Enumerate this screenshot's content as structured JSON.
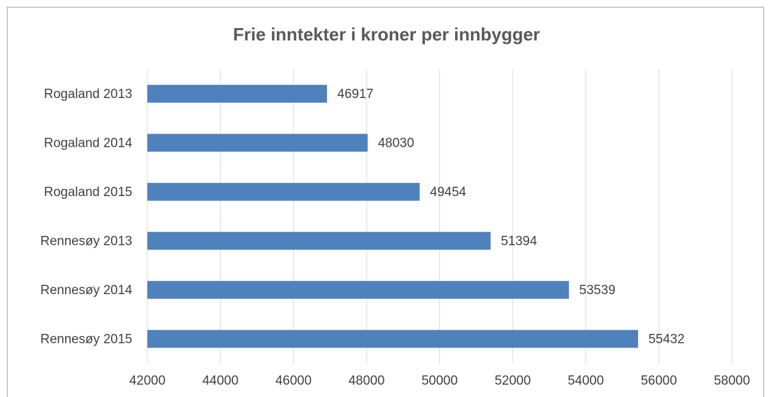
{
  "chart_data": {
    "type": "bar",
    "orientation": "horizontal",
    "title": "Frie inntekter i kroner per innbygger",
    "categories": [
      "Rogaland 2013",
      "Rogaland 2014",
      "Rogaland 2015",
      "Rennesøy 2013",
      "Rennesøy 2014",
      "Rennesøy 2015"
    ],
    "values": [
      46917,
      48030,
      49454,
      51394,
      53539,
      55432
    ],
    "color": "#4f81bd",
    "xlim": [
      42000,
      58000
    ],
    "xticks": [
      42000,
      44000,
      46000,
      48000,
      50000,
      52000,
      54000,
      56000,
      58000
    ],
    "grid": true
  }
}
